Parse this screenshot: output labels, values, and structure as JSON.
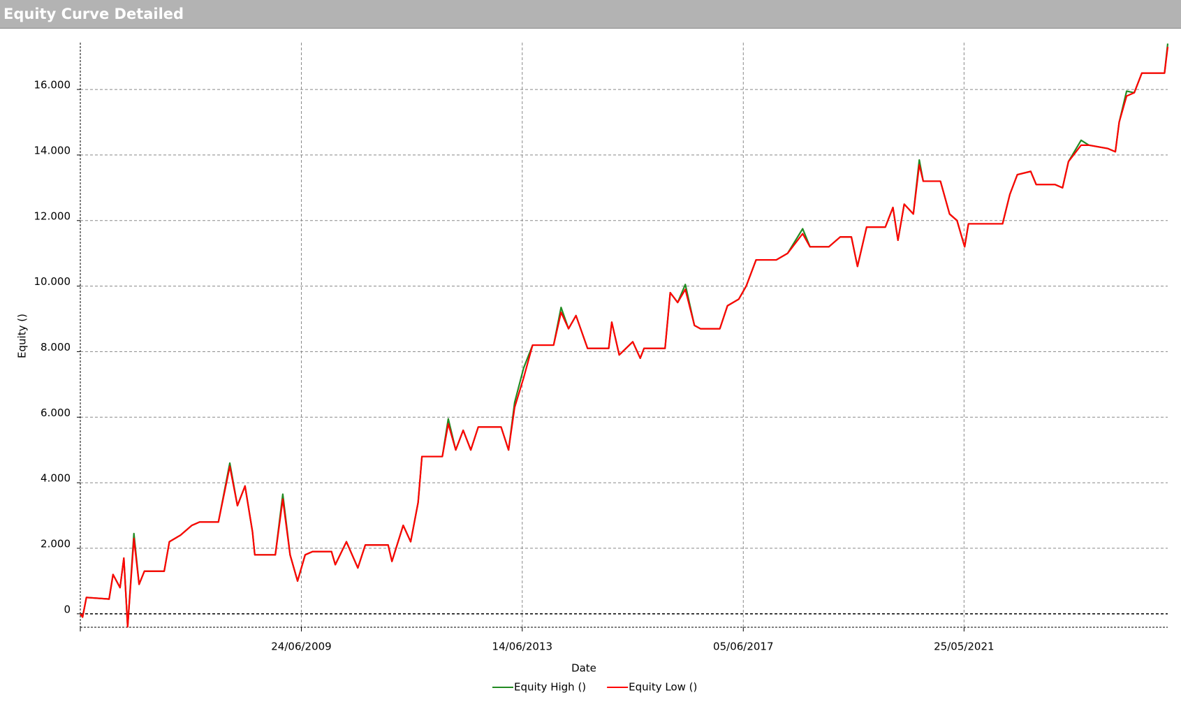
{
  "chart_data": {
    "type": "line",
    "title": "Equity Curve Detailed",
    "x_label": "Date",
    "y_label": "Equity ()",
    "x": [
      "2005-07-03",
      "2005-07-18",
      "2005-08-12",
      "2006-01-08",
      "2006-02-03",
      "2006-03-21",
      "2006-04-15",
      "2006-05-10",
      "2006-06-20",
      "2006-07-24",
      "2006-08-28",
      "2007-01-05",
      "2007-02-08",
      "2007-04-22",
      "2007-07-06",
      "2007-08-25",
      "2007-12-27",
      "2008-03-11",
      "2008-04-30",
      "2008-06-19",
      "2008-08-07",
      "2008-08-22",
      "2009-01-04",
      "2009-02-22",
      "2009-04-11",
      "2009-05-30",
      "2009-07-19",
      "2009-09-06",
      "2010-01-08",
      "2010-02-02",
      "2010-04-16",
      "2010-06-30",
      "2010-08-18",
      "2011-01-15",
      "2011-02-09",
      "2011-04-24",
      "2011-06-12",
      "2011-07-31",
      "2011-08-25",
      "2012-01-06",
      "2012-02-14",
      "2012-04-03",
      "2012-05-22",
      "2012-07-11",
      "2012-08-29",
      "2013-01-26",
      "2013-03-16",
      "2013-04-25",
      "2013-06-23",
      "2013-08-21",
      "2014-01-06",
      "2014-02-24",
      "2014-04-14",
      "2014-06-02",
      "2014-08-17",
      "2015-01-03",
      "2015-01-23",
      "2015-03-13",
      "2015-06-10",
      "2015-07-29",
      "2015-08-23",
      "2016-01-08",
      "2016-02-11",
      "2016-03-31",
      "2016-05-20",
      "2016-07-19",
      "2016-08-27",
      "2017-01-02",
      "2017-02-21",
      "2017-05-06",
      "2017-06-24",
      "2017-08-28",
      "2018-01-08",
      "2018-03-23",
      "2018-06-30",
      "2018-08-17",
      "2018-12-19",
      "2019-03-04",
      "2019-05-16",
      "2019-06-25",
      "2019-08-24",
      "2019-12-25",
      "2020-02-13",
      "2020-03-17",
      "2020-04-27",
      "2020-06-26",
      "2020-08-04",
      "2020-08-30",
      "2020-12-21",
      "2021-02-19",
      "2021-04-09",
      "2021-05-29",
      "2021-06-23",
      "2021-08-11",
      "2022-02-02",
      "2022-03-22",
      "2022-05-10",
      "2022-08-06",
      "2022-09-11",
      "2023-01-12",
      "2023-03-03",
      "2023-04-11",
      "2023-07-03",
      "2023-08-23",
      "2023-12-24",
      "2024-02-13",
      "2024-03-09",
      "2024-04-27",
      "2024-06-16",
      "2024-08-05",
      "2024-08-30",
      "2025-01-01",
      "2025-01-22"
    ],
    "series": [
      {
        "name": "Equity High ()",
        "color": "#228b22",
        "values": [
          0,
          -100,
          500,
          450,
          1200,
          800,
          1700,
          -400,
          2450,
          900,
          1300,
          1300,
          2200,
          2400,
          2700,
          2800,
          2800,
          4600,
          3300,
          3900,
          2500,
          1800,
          1800,
          3650,
          1800,
          1000,
          1800,
          1900,
          1900,
          1500,
          2200,
          1400,
          2100,
          2100,
          1600,
          2700,
          2200,
          3400,
          4800,
          4800,
          5950,
          5000,
          5600,
          5000,
          5700,
          5700,
          5000,
          6450,
          7500,
          8200,
          8200,
          9350,
          8700,
          9100,
          8100,
          8100,
          8900,
          7900,
          8300,
          7800,
          8100,
          8100,
          9800,
          9500,
          10050,
          8800,
          8700,
          8700,
          9400,
          9600,
          10000,
          10800,
          10800,
          11000,
          11750,
          11200,
          11200,
          11500,
          11500,
          10600,
          11800,
          11800,
          12400,
          11400,
          12500,
          12200,
          13850,
          13200,
          13200,
          12200,
          12000,
          11200,
          11900,
          11900,
          11900,
          12800,
          13400,
          13500,
          13100,
          13100,
          13000,
          13800,
          14450,
          14300,
          14200,
          14100,
          15000,
          15950,
          15900,
          16500,
          16500,
          16500,
          17400
        ]
      },
      {
        "name": "Equity Low ()",
        "color": "#ff0000",
        "values": [
          0,
          -100,
          500,
          450,
          1200,
          800,
          1700,
          -400,
          2300,
          900,
          1300,
          1300,
          2200,
          2400,
          2700,
          2800,
          2800,
          4500,
          3300,
          3900,
          2500,
          1800,
          1800,
          3500,
          1800,
          1000,
          1800,
          1900,
          1900,
          1500,
          2200,
          1400,
          2100,
          2100,
          1600,
          2700,
          2200,
          3400,
          4800,
          4800,
          5800,
          5000,
          5600,
          5000,
          5700,
          5700,
          5000,
          6300,
          7200,
          8200,
          8200,
          9200,
          8700,
          9100,
          8100,
          8100,
          8900,
          7900,
          8300,
          7800,
          8100,
          8100,
          9800,
          9500,
          9900,
          8800,
          8700,
          8700,
          9400,
          9600,
          10000,
          10800,
          10800,
          11000,
          11600,
          11200,
          11200,
          11500,
          11500,
          10600,
          11800,
          11800,
          12400,
          11400,
          12500,
          12200,
          13700,
          13200,
          13200,
          12200,
          12000,
          11200,
          11900,
          11900,
          11900,
          12800,
          13400,
          13500,
          13100,
          13100,
          13000,
          13800,
          14300,
          14300,
          14200,
          14100,
          15000,
          15800,
          15900,
          16500,
          16500,
          16500,
          17300
        ]
      }
    ],
    "xlim": [
      "2005-07-03",
      "2025-01-22"
    ],
    "xticks": [
      {
        "value": "2009-06-24",
        "label": "24/06/2009"
      },
      {
        "value": "2013-06-14",
        "label": "14/06/2013"
      },
      {
        "value": "2017-06-05",
        "label": "05/06/2017"
      },
      {
        "value": "2021-05-25",
        "label": "25/05/2021"
      }
    ],
    "ylim": [
      -410,
      17430
    ],
    "yticks": [
      0,
      {
        "value": 2000,
        "label": "2.000"
      },
      {
        "value": 4000,
        "label": "4.000"
      },
      {
        "value": 6000,
        "label": "6.000"
      },
      {
        "value": 8000,
        "label": "8.000"
      },
      {
        "value": 10000,
        "label": "10.000"
      },
      {
        "value": 12000,
        "label": "12.000"
      },
      {
        "value": 14000,
        "label": "14.000"
      },
      {
        "value": 16000,
        "label": "16.000"
      }
    ],
    "grid": true,
    "legend": "bottom"
  }
}
